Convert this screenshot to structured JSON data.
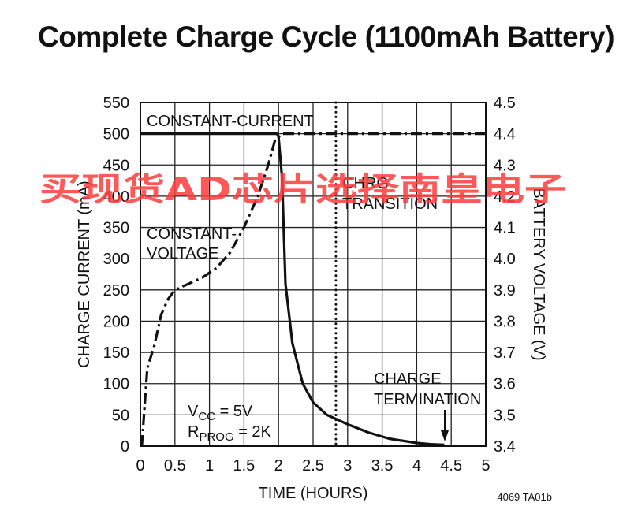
{
  "title": "Complete Charge Cycle (1100mAh Battery)",
  "figure_code": "4069 TA01b",
  "watermark": "买现货AD芯片选择南皇电子",
  "chart_data": {
    "type": "line",
    "xlabel": "TIME (HOURS)",
    "ylabel": "CHARGE CURRENT (mA)",
    "y2label": "BATTERY VOLTAGE (V)",
    "xlim": [
      0,
      5
    ],
    "ylim": [
      0,
      550
    ],
    "y2lim": [
      3.4,
      4.5
    ],
    "x_ticks": [
      "0",
      "0.5",
      "1",
      "1.5",
      "2",
      "2.5",
      "3",
      "3.5",
      "4",
      "4.5",
      "5"
    ],
    "y_ticks": [
      "0",
      "50",
      "100",
      "150",
      "200",
      "250",
      "300",
      "350",
      "400",
      "450",
      "500",
      "550"
    ],
    "y2_ticks": [
      "3.4",
      "3.5",
      "3.6",
      "3.7",
      "3.8",
      "3.9",
      "4.0",
      "4.1",
      "4.2",
      "4.3",
      "4.4",
      "4.5"
    ],
    "grid": true,
    "series": [
      {
        "axis": "left",
        "style": "solid",
        "x": [
          0,
          0.5,
          1,
          1.5,
          1.98,
          2.0,
          2.05,
          2.1,
          2.2,
          2.35,
          2.5,
          2.7,
          2.8,
          3.0,
          3.3,
          3.6,
          4.0,
          4.2,
          4.4
        ],
        "y": [
          500,
          500,
          500,
          500,
          500,
          495,
          430,
          260,
          165,
          100,
          70,
          50,
          45,
          35,
          22,
          12,
          5,
          3,
          2
        ]
      },
      {
        "axis": "right",
        "style": "dash-dot",
        "x": [
          0.02,
          0.1,
          0.2,
          0.3,
          0.4,
          0.5,
          0.7,
          0.9,
          1.1,
          1.3,
          1.5,
          1.7,
          1.85,
          1.95,
          2.05,
          2.5,
          3.0,
          4.0,
          5.0
        ],
        "y": [
          3.4,
          3.65,
          3.72,
          3.82,
          3.87,
          3.9,
          3.92,
          3.94,
          3.97,
          4.02,
          4.1,
          4.2,
          4.3,
          4.38,
          4.4,
          4.4,
          4.4,
          4.4,
          4.4
        ]
      }
    ],
    "markers": [
      {
        "type": "vertical-dotted",
        "x": 2.83
      }
    ],
    "annotations": {
      "constant_current": "CONSTANT-CURRENT",
      "constant_voltage_1": "CONSTANT-",
      "constant_voltage_2": "VOLTAGE",
      "chrg_1": "CHRG",
      "chrg_2": "TRANSITION",
      "charge_1": "CHARGE",
      "charge_2": "TERMINATION",
      "vcc_main": "V",
      "vcc_sub": "CC",
      "vcc_rest": " = 5V",
      "rprog_main": "R",
      "rprog_sub": "PROG",
      "rprog_rest": " = 2K"
    }
  }
}
